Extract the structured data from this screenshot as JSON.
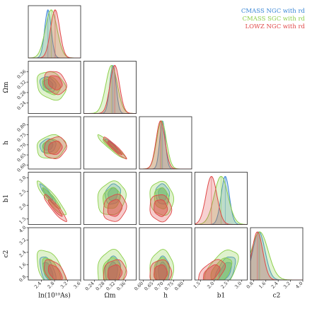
{
  "chart_data": {
    "type": "corner",
    "parameters": [
      {
        "name": "ln(10^10 A_s)",
        "label": "ln(10¹⁰As)",
        "range": [
          2.0,
          3.6
        ],
        "ticks": [
          "2.4",
          "2.8",
          "3.2",
          "3.6"
        ],
        "tick_values": [
          2.4,
          2.8,
          3.2,
          3.6
        ]
      },
      {
        "name": "Omega_m",
        "label": "Ωm",
        "range": [
          0.2,
          0.4
        ],
        "ticks": [
          "0.24",
          "0.28",
          "0.32",
          "0.36"
        ],
        "tick_values": [
          0.24,
          0.28,
          0.32,
          0.36
        ]
      },
      {
        "name": "h",
        "label": "h",
        "range": [
          0.58,
          0.84
        ],
        "ticks": [
          "0.60",
          "0.65",
          "0.70",
          "0.75",
          "0.80"
        ],
        "tick_values": [
          0.6,
          0.65,
          0.7,
          0.75,
          0.8
        ]
      },
      {
        "name": "b1",
        "label": "b1",
        "range": [
          1.3,
          3.2
        ],
        "ticks": [
          "1.5",
          "2.0",
          "2.5",
          "3.0"
        ],
        "tick_values": [
          1.5,
          2.0,
          2.5,
          3.0
        ]
      },
      {
        "name": "c2",
        "label": "c2",
        "range": [
          0.6,
          4.0
        ],
        "ticks": [
          "0.8",
          "1.6",
          "2.4",
          "3.2",
          "4.0"
        ],
        "tick_values": [
          0.8,
          1.6,
          2.4,
          3.2,
          4.0
        ]
      }
    ],
    "series": [
      {
        "name": "CMASS NGC with r_d",
        "legend": "CMASS NGC with rd",
        "color": "#3a87d6",
        "mean": [
          2.6,
          0.311,
          0.695,
          2.4,
          1.15
        ],
        "sigma": [
          0.1,
          0.012,
          0.014,
          0.15,
          0.4
        ]
      },
      {
        "name": "CMASS SGC with r_d",
        "legend": "CMASS SGC with rd",
        "color": "#8ccf4a",
        "mean": [
          2.7,
          0.306,
          0.69,
          2.25,
          1.2
        ],
        "sigma": [
          0.18,
          0.022,
          0.024,
          0.25,
          0.55
        ]
      },
      {
        "name": "LOWZ NGC with r_d",
        "legend": "LOWZ NGC with rd",
        "color": "#e04848",
        "mean": [
          2.82,
          0.318,
          0.685,
          1.9,
          1.05
        ],
        "sigma": [
          0.14,
          0.018,
          0.022,
          0.2,
          0.35
        ]
      }
    ],
    "correlations": {
      "0-1": -0.25,
      "0-2": 0.15,
      "0-3": -0.92,
      "0-4": -0.55,
      "1-2": -0.95,
      "1-3": 0.15,
      "1-4": 0.1,
      "2-3": -0.1,
      "2-4": 0.05,
      "3-4": 0.55
    },
    "legend_position": "top-right",
    "grid": false
  }
}
